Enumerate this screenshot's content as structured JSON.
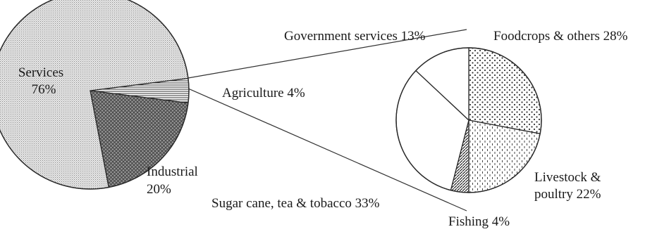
{
  "chart_data": [
    {
      "type": "pie",
      "slices": [
        {
          "label": "Services",
          "value": 76,
          "value_label": "76%",
          "pattern": "fine-dots"
        },
        {
          "label": "Industrial",
          "value": 20,
          "value_label": "20%",
          "pattern": "crosshatch"
        },
        {
          "label": "Agriculture",
          "value": 4,
          "value_label": "4%",
          "pattern": "horizontal-lines"
        }
      ]
    },
    {
      "type": "pie",
      "detail_of": "Agriculture",
      "slices": [
        {
          "label": "Foodcrops & others",
          "value": 28,
          "value_label": "28%",
          "pattern": "coarse-dots"
        },
        {
          "label": "Livestock & poultry",
          "value": 22,
          "value_label": "22%",
          "pattern": "dashes"
        },
        {
          "label": "Fishing",
          "value": 4,
          "value_label": "4%",
          "pattern": "diagonal-lines"
        },
        {
          "label": "Sugar cane, tea & tobacco",
          "value": 33,
          "value_label": "33%",
          "pattern": "blank"
        },
        {
          "label": "Government services",
          "value": 13,
          "value_label": "13%",
          "pattern": "blank"
        }
      ]
    }
  ],
  "labels": {
    "services": "Services",
    "services_pct": "76%",
    "industrial": "Industrial",
    "industrial_pct": "20%",
    "agriculture": "Agriculture 4%",
    "government": "Government services 13%",
    "foodcrops": "Foodcrops & others 28%",
    "livestock_line1": "Livestock &",
    "livestock_line2": "poultry 22%",
    "fishing": "Fishing 4%",
    "sugar": "Sugar cane, tea & tobacco 33%"
  }
}
